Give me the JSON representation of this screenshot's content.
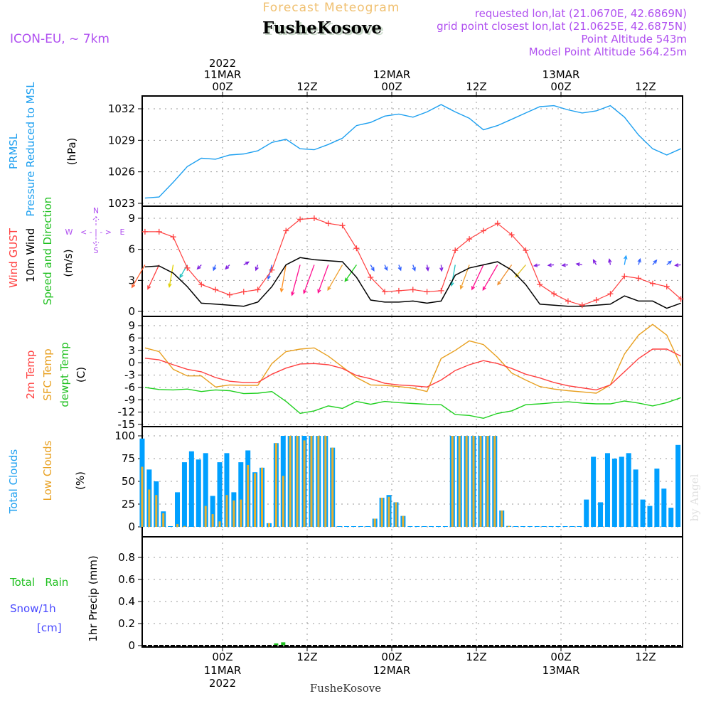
{
  "header": {
    "title": "Forecast Meteogram",
    "station": "FusheKosove",
    "model": "ICON-EU, ~ 7km",
    "requested": "requested lon,lat (21.0670E, 42.6869N)",
    "grid_point": "grid point closest lon,lat (21.0625E, 42.6875N)",
    "altitude": "Point Altitude 543m",
    "model_altitude": "Model Point Altitude 564.25m",
    "footer_station": "FusheKosove",
    "watermark": "by Angel"
  },
  "time_axis": {
    "year": "2022",
    "days": [
      {
        "label": "11MAR",
        "hour": 0
      },
      {
        "label": "12MAR",
        "hour": 24
      },
      {
        "label": "13MAR",
        "hour": 48
      }
    ],
    "ticks": [
      {
        "label": "00Z",
        "hour": 0
      },
      {
        "label": "12Z",
        "hour": 12
      },
      {
        "label": "00Z",
        "hour": 24
      },
      {
        "label": "12Z",
        "hour": 36
      },
      {
        "label": "00Z",
        "hour": 48
      },
      {
        "label": "12Z",
        "hour": 60
      }
    ],
    "range_hours": [
      -11.4,
      65.2
    ],
    "unit": "hours since 2022-03-11 00Z"
  },
  "labels": {
    "pressure": {
      "a": "PRMSL",
      "b": "Pressure Reduced to MSL",
      "unit": "(hPa)"
    },
    "wind": {
      "a": "Wind GUST",
      "b": "10m Wind",
      "c": "Speed and Direction",
      "unit": "(m/s)",
      "compass": {
        "n": "N",
        "s": "S",
        "w": "W",
        "e": "E",
        "arrows": "< - | - >"
      }
    },
    "temp": {
      "a": "2m Temp",
      "b": "SFC Temp",
      "c": "dewpt Temp",
      "unit": "(C)"
    },
    "clouds": {
      "a": "Total Clouds",
      "b": "Low Clouds",
      "unit": "(%)"
    },
    "precip": {
      "a": "Total   Rain",
      "b": "Snow/1h",
      "c": "[cm]",
      "unit": "1hr Precip (mm)"
    }
  },
  "colors": {
    "pressure": "#1ea0f0",
    "gust": "#ff4040",
    "wind": "#000000",
    "t2m": "#ff4040",
    "tsfc": "#e8a020",
    "dewpt": "#20d020",
    "total_clouds": "#00a0ff",
    "low_clouds": "#e8b030",
    "rain": "#20c020",
    "snow": "#4848ff",
    "purple": "#b050f0",
    "title": "#f0c070"
  },
  "chart_data": [
    {
      "type": "line",
      "name": "pressure",
      "ylabel": "Pressure Reduced to MSL (hPa)",
      "ylim": [
        1023,
        1033
      ],
      "yticks": [
        1023,
        1026,
        1029,
        1032
      ],
      "x_start": -11,
      "x_step": 2,
      "series": [
        {
          "name": "PRMSL",
          "values": [
            1023.5,
            1023.6,
            1025.0,
            1026.5,
            1027.3,
            1027.2,
            1027.6,
            1027.7,
            1028.0,
            1028.8,
            1029.1,
            1028.2,
            1028.1,
            1028.6,
            1029.2,
            1030.4,
            1030.7,
            1031.3,
            1031.5,
            1031.2,
            1031.7,
            1032.4,
            1031.7,
            1031.1,
            1030.0,
            1030.4,
            1031.0,
            1031.6,
            1032.2,
            1032.3,
            1031.9,
            1031.6,
            1031.8,
            1032.3,
            1031.2,
            1029.5,
            1028.2,
            1027.6,
            1028.2
          ]
        }
      ]
    },
    {
      "type": "line",
      "name": "wind",
      "ylabel": "Wind (m/s)",
      "ylim": [
        0,
        9.8
      ],
      "yticks": [
        0,
        3,
        6,
        9
      ],
      "x_start": -11,
      "x_step": 2,
      "series": [
        {
          "name": "Wind GUST",
          "values": [
            7.7,
            7.7,
            7.2,
            4.2,
            2.6,
            2.1,
            1.6,
            1.9,
            2.1,
            4.0,
            7.8,
            8.9,
            9.0,
            8.5,
            8.3,
            6.1,
            3.3,
            1.9,
            2.0,
            2.1,
            1.9,
            2.0,
            5.9,
            7.0,
            7.8,
            8.5,
            7.4,
            5.9,
            2.6,
            1.7,
            1.0,
            0.6,
            1.1,
            1.7,
            3.4,
            3.2,
            2.7,
            2.4,
            1.2
          ]
        },
        {
          "name": "10m Wind",
          "values": [
            4.3,
            4.4,
            3.7,
            2.4,
            0.8,
            0.7,
            0.6,
            0.5,
            0.9,
            2.4,
            4.5,
            5.2,
            5.0,
            4.9,
            4.8,
            3.3,
            1.1,
            0.9,
            0.9,
            1.0,
            0.8,
            1.0,
            3.5,
            4.2,
            4.5,
            4.8,
            4.0,
            2.6,
            0.7,
            0.6,
            0.5,
            0.5,
            0.6,
            0.7,
            1.5,
            1.0,
            1.0,
            0.3,
            0.8
          ]
        }
      ],
      "arrows": {
        "base_value": 4.5,
        "direction_deg": [
          210,
          205,
          190,
          210,
          225,
          200,
          225,
          60,
          200,
          195,
          190,
          195,
          200,
          200,
          210,
          215,
          150,
          155,
          160,
          160,
          170,
          175,
          190,
          200,
          205,
          210,
          215,
          220,
          260,
          265,
          265,
          280,
          330,
          350,
          10,
          15,
          40,
          50,
          265
        ],
        "colors": [
          "#ff6030",
          "#ff4040",
          "#e0d000",
          "#20c0c0",
          "#8020e0",
          "#3060ff",
          "#8020e0",
          "#8020e0",
          "#8020e0",
          "#3060ff",
          "#ff9020",
          "#ff1090",
          "#ff1090",
          "#ff1090",
          "#f0a030",
          "#20d020",
          "#3060ff",
          "#3060ff",
          "#3060ff",
          "#3060ff",
          "#8020e0",
          "#8020e0",
          "#20c0c0",
          "#f0a030",
          "#ff1090",
          "#ff1090",
          "#f09030",
          "#e0c020",
          "#8020e0",
          "#8020e0",
          "#8020e0",
          "#8020e0",
          "#8020e0",
          "#8020e0",
          "#20a0ff",
          "#3060ff",
          "#3060ff",
          "#3060ff",
          "#8020e0"
        ]
      }
    },
    {
      "type": "line",
      "name": "temperature",
      "ylabel": "Temperature (C)",
      "ylim": [
        -15,
        10
      ],
      "yticks": [
        -15,
        -12,
        -9,
        -6,
        -3,
        0,
        3,
        6,
        9
      ],
      "x_start": -11,
      "x_step": 2,
      "series": [
        {
          "name": "2m Temp",
          "values": [
            1.1,
            0.7,
            -0.5,
            -1.6,
            -2.2,
            -3.6,
            -4.5,
            -4.8,
            -4.8,
            -2.8,
            -1.3,
            -0.3,
            -0.2,
            -0.5,
            -1.4,
            -3.1,
            -3.9,
            -5.0,
            -5.4,
            -5.6,
            -5.9,
            -4.2,
            -1.9,
            -0.5,
            0.5,
            -0.2,
            -1.4,
            -2.8,
            -3.7,
            -4.8,
            -5.6,
            -6.1,
            -6.6,
            -5.4,
            -2.2,
            1.0,
            3.3,
            3.3,
            1.6
          ]
        },
        {
          "name": "SFC Temp",
          "values": [
            3.6,
            2.7,
            -1.6,
            -3.2,
            -3.2,
            -5.9,
            -5.4,
            -5.5,
            -5.5,
            -0.2,
            2.7,
            3.3,
            3.6,
            1.6,
            -1.0,
            -3.6,
            -5.4,
            -5.5,
            -5.8,
            -6.2,
            -7.0,
            1.0,
            3.0,
            5.3,
            4.4,
            1.3,
            -2.5,
            -4.2,
            -5.8,
            -6.4,
            -6.8,
            -7.1,
            -7.4,
            -5.4,
            2.1,
            6.7,
            9.3,
            6.7,
            -0.7
          ]
        },
        {
          "name": "dewpt Temp",
          "values": [
            -6.0,
            -6.5,
            -6.6,
            -6.4,
            -7.0,
            -6.6,
            -6.8,
            -7.5,
            -7.4,
            -7.0,
            -9.4,
            -12.3,
            -11.7,
            -10.5,
            -11.1,
            -9.4,
            -10.1,
            -9.4,
            -9.7,
            -9.9,
            -10.1,
            -10.2,
            -12.6,
            -12.8,
            -13.5,
            -12.3,
            -11.7,
            -10.2,
            -10.0,
            -9.7,
            -9.5,
            -9.8,
            -10.0,
            -10.0,
            -9.3,
            -9.8,
            -10.5,
            -9.7,
            -8.5
          ]
        }
      ]
    },
    {
      "type": "bar",
      "name": "clouds",
      "ylabel": "Clouds (%)",
      "ylim": [
        0,
        110
      ],
      "yticks": [
        0,
        25,
        50,
        75,
        100
      ],
      "x_start": -11.4,
      "x_step": 1,
      "series": [
        {
          "name": "Total Clouds",
          "values": [
            97,
            63,
            50,
            17,
            0,
            38,
            71,
            83,
            74,
            81,
            34,
            71,
            81,
            38,
            71,
            84,
            60,
            65,
            4,
            92,
            100,
            100,
            100,
            100,
            100,
            100,
            100,
            87,
            0,
            0,
            0,
            0,
            0,
            9,
            32,
            35,
            27,
            12,
            0,
            0,
            0,
            0,
            0,
            0,
            100,
            100,
            100,
            100,
            100,
            100,
            100,
            18,
            1,
            0,
            0,
            0,
            0,
            0,
            0,
            0,
            0,
            0,
            0,
            30,
            77,
            27,
            81,
            75,
            77,
            81,
            63,
            30,
            23,
            64,
            42,
            21,
            90
          ]
        },
        {
          "name": "Low Clouds",
          "values": [
            66,
            41,
            35,
            15,
            0,
            3,
            1,
            0,
            0,
            23,
            14,
            6,
            35,
            29,
            30,
            68,
            59,
            65,
            4,
            92,
            56,
            100,
            100,
            95,
            100,
            100,
            100,
            87,
            0,
            0,
            0,
            0,
            0,
            9,
            32,
            33,
            27,
            12,
            0,
            0,
            0,
            0,
            0,
            0,
            100,
            100,
            100,
            100,
            100,
            100,
            100,
            18,
            1,
            0,
            0,
            0,
            0,
            0,
            0,
            0,
            0,
            0,
            0,
            0,
            0,
            0,
            0,
            0,
            0,
            0,
            0,
            0,
            0,
            0,
            0,
            0,
            0
          ]
        }
      ]
    },
    {
      "type": "bar",
      "name": "precipitation",
      "ylabel": "1hr Precip (mm)",
      "ylim": [
        0,
        0.98
      ],
      "yticks": [
        0,
        0.2,
        0.4,
        0.6,
        0.8
      ],
      "series": [
        {
          "name": "Total Rain",
          "x": [
            7.6,
            8.6
          ],
          "values": [
            0.02,
            0.03
          ]
        }
      ]
    }
  ]
}
